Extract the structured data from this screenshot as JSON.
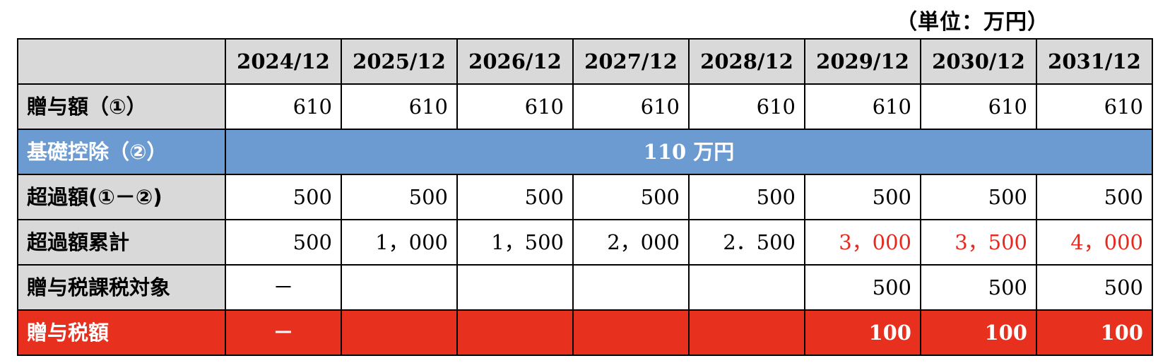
{
  "unit_label": "（単位：万円）",
  "header": {
    "corner": "",
    "years": [
      "2024/12",
      "2025/12",
      "2026/12",
      "2027/12",
      "2028/12",
      "2029/12",
      "2030/12",
      "2031/12"
    ]
  },
  "rows": {
    "gift_amount": {
      "label": "贈与額（①）",
      "values": [
        "610",
        "610",
        "610",
        "610",
        "610",
        "610",
        "610",
        "610"
      ]
    },
    "basic_deduction": {
      "label": "基礎控除（②）",
      "value": "110 万円"
    },
    "excess_amount": {
      "label": "超過額(①－②)",
      "values": [
        "500",
        "500",
        "500",
        "500",
        "500",
        "500",
        "500",
        "500"
      ]
    },
    "excess_cumulative": {
      "label": "超過額累計",
      "values": [
        "500",
        "1，000",
        "1，500",
        "2，000",
        "2．500",
        "3，000",
        "3，500",
        "4，000"
      ]
    },
    "taxable": {
      "label": "贈与税課税対象",
      "values": [
        "－",
        "",
        "",
        "",
        "",
        "500",
        "500",
        "500"
      ]
    },
    "gift_tax": {
      "label": "贈与税額",
      "values": [
        "－",
        "",
        "",
        "",
        "",
        "100",
        "100",
        "100"
      ]
    }
  },
  "colors": {
    "header_gray": "#d9d9d9",
    "deduction_blue": "#6c9bd1",
    "tax_red": "#e8301f",
    "highlight_text_red": "#e8281e"
  }
}
